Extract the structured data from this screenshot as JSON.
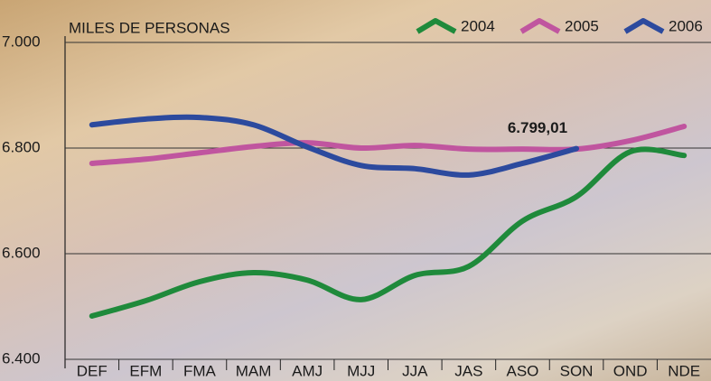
{
  "chart_data": {
    "type": "line",
    "y_label": "MILES DE PERSONAS",
    "categories": [
      "DEF",
      "EFM",
      "FMA",
      "MAM",
      "AMJ",
      "MJJ",
      "JJA",
      "JAS",
      "ASO",
      "SON",
      "OND",
      "NDE"
    ],
    "series": [
      {
        "name": "2004",
        "color": "#1f8a3b",
        "values": [
          6482,
          6511,
          6547,
          6564,
          6550,
          6513,
          6559,
          6576,
          6662,
          6708,
          6793,
          6786
        ]
      },
      {
        "name": "2005",
        "color": "#c0559f",
        "values": [
          6771,
          6779,
          6791,
          6803,
          6810,
          6800,
          6805,
          6798,
          6798,
          6798,
          6814,
          6841
        ]
      },
      {
        "name": "2006",
        "color": "#2c4a9e",
        "values": [
          6844,
          6855,
          6858,
          6844,
          6802,
          6767,
          6761,
          6749,
          6771,
          6799.01,
          null,
          null
        ],
        "value_labels": [
          null,
          null,
          null,
          null,
          null,
          null,
          null,
          null,
          null,
          "6.799,01",
          null,
          null
        ]
      }
    ],
    "ylim": [
      6400,
      7000
    ],
    "yticks": [
      {
        "value": 6400,
        "label": "6.400"
      },
      {
        "value": 6600,
        "label": "6.600"
      },
      {
        "value": 6800,
        "label": "6.800"
      },
      {
        "value": 7000,
        "label": "7.000"
      }
    ],
    "grid": true,
    "legend": "top-right"
  }
}
